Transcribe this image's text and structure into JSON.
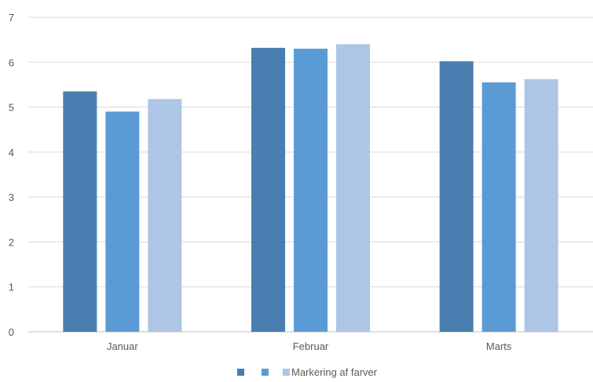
{
  "chart_data": {
    "type": "bar",
    "categories": [
      "Januar",
      "Februar",
      "Marts"
    ],
    "series": [
      {
        "name": "",
        "color": "#4a7eb0",
        "values": [
          5.35,
          6.32,
          6.02
        ]
      },
      {
        "name": "",
        "color": "#5b9bd5",
        "values": [
          4.9,
          6.3,
          5.55
        ]
      },
      {
        "name": "Markering af farver",
        "color": "#adc6e6",
        "values": [
          5.18,
          6.4,
          5.62
        ]
      }
    ],
    "title": "",
    "xlabel": "",
    "ylabel": "",
    "ylim": [
      0,
      7
    ],
    "yticks": [
      "0",
      "1",
      "2",
      "3",
      "4",
      "5",
      "6",
      "7"
    ],
    "grid": true,
    "legend_position": "bottom"
  }
}
